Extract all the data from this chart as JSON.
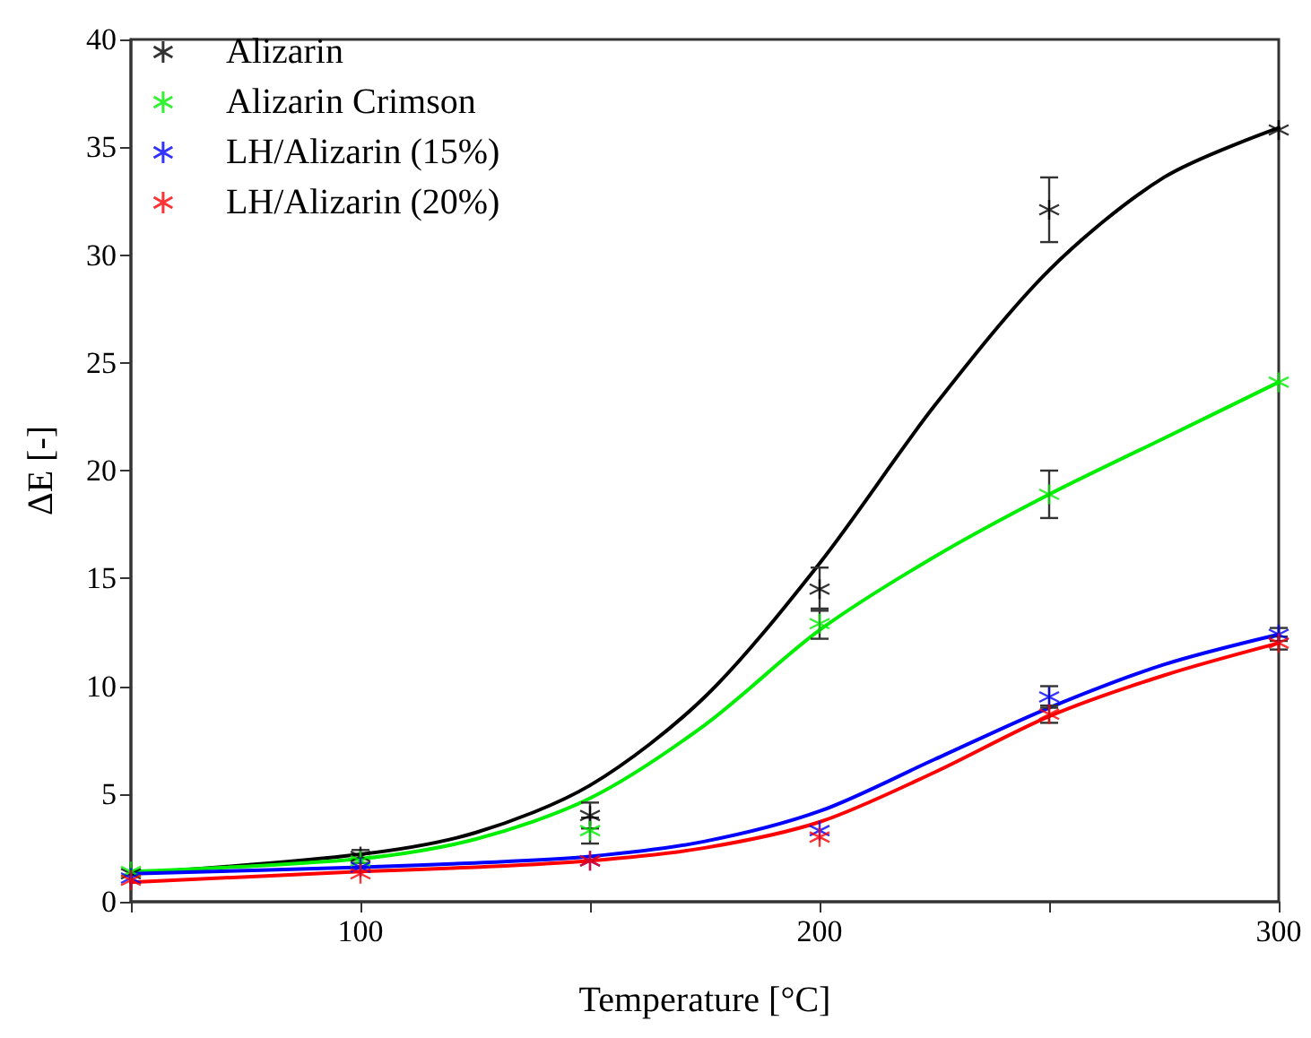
{
  "chart_data": {
    "type": "scatter",
    "xlabel": "Temperature [°C]",
    "ylabel": "ΔE [-]",
    "xlim": [
      50,
      300
    ],
    "xticks": [
      {
        "value": 50,
        "label": null
      },
      100,
      {
        "value": 150,
        "label": null
      },
      200,
      {
        "value": 250,
        "label": null
      },
      300
    ],
    "ylim": [
      0,
      40
    ],
    "yticks": [
      0,
      5,
      10,
      15,
      20,
      25,
      30,
      35,
      40
    ],
    "grid": false,
    "legend": "top left",
    "marker": "cross",
    "x": [
      50,
      100,
      150,
      200,
      250,
      300
    ],
    "series": [
      {
        "name": "Alizarin",
        "color": "#000000",
        "values": [
          1.3,
          2.1,
          4.0,
          14.5,
          32.1,
          35.8
        ],
        "errors": [
          null,
          0.3,
          0.6,
          1.0,
          1.5,
          null
        ]
      },
      {
        "name": "Alizarin Crimson",
        "color": "#00ee00",
        "values": [
          1.4,
          1.9,
          3.3,
          12.9,
          18.9,
          24.1
        ],
        "errors": [
          null,
          null,
          0.6,
          0.7,
          1.1,
          null
        ]
      },
      {
        "name": "LH/Alizarin (15%)",
        "color": "#0000ff",
        "values": [
          1.1,
          1.6,
          1.9,
          3.3,
          9.5,
          12.4
        ],
        "errors": [
          null,
          null,
          null,
          null,
          0.5,
          0.3
        ]
      },
      {
        "name": "LH/Alizarin (20%)",
        "color": "#ff0000",
        "values": [
          1.0,
          1.3,
          1.9,
          3.0,
          8.7,
          12.0
        ],
        "errors": [
          null,
          null,
          null,
          null,
          0.4,
          0.3
        ]
      },
      {
        "type": "line",
        "color": "#000000",
        "marker": "none",
        "x": [
          50,
          100,
          125,
          150,
          175,
          200,
          225,
          250,
          275,
          300
        ],
        "values": [
          1.3,
          2.2,
          3.2,
          5.4,
          9.5,
          15.7,
          23.0,
          29.3,
          33.6,
          35.9
        ]
      },
      {
        "type": "line",
        "color": "#00ee00",
        "marker": "none",
        "x": [
          50,
          100,
          125,
          150,
          175,
          200,
          225,
          250,
          275,
          300
        ],
        "values": [
          1.4,
          2.0,
          2.9,
          4.8,
          8.2,
          12.6,
          16.0,
          18.9,
          21.5,
          24.1
        ]
      },
      {
        "type": "line",
        "color": "#0000ff",
        "marker": "none",
        "x": [
          50,
          100,
          125,
          150,
          175,
          200,
          225,
          250,
          275,
          300
        ],
        "values": [
          1.3,
          1.6,
          1.8,
          2.1,
          2.8,
          4.2,
          6.6,
          9.0,
          11.0,
          12.4
        ]
      },
      {
        "type": "line",
        "color": "#ff0000",
        "marker": "none",
        "x": [
          50,
          100,
          125,
          150,
          175,
          200,
          225,
          250,
          275,
          300
        ],
        "values": [
          0.9,
          1.4,
          1.6,
          1.9,
          2.5,
          3.7,
          6.0,
          8.6,
          10.5,
          12.0
        ]
      }
    ]
  }
}
